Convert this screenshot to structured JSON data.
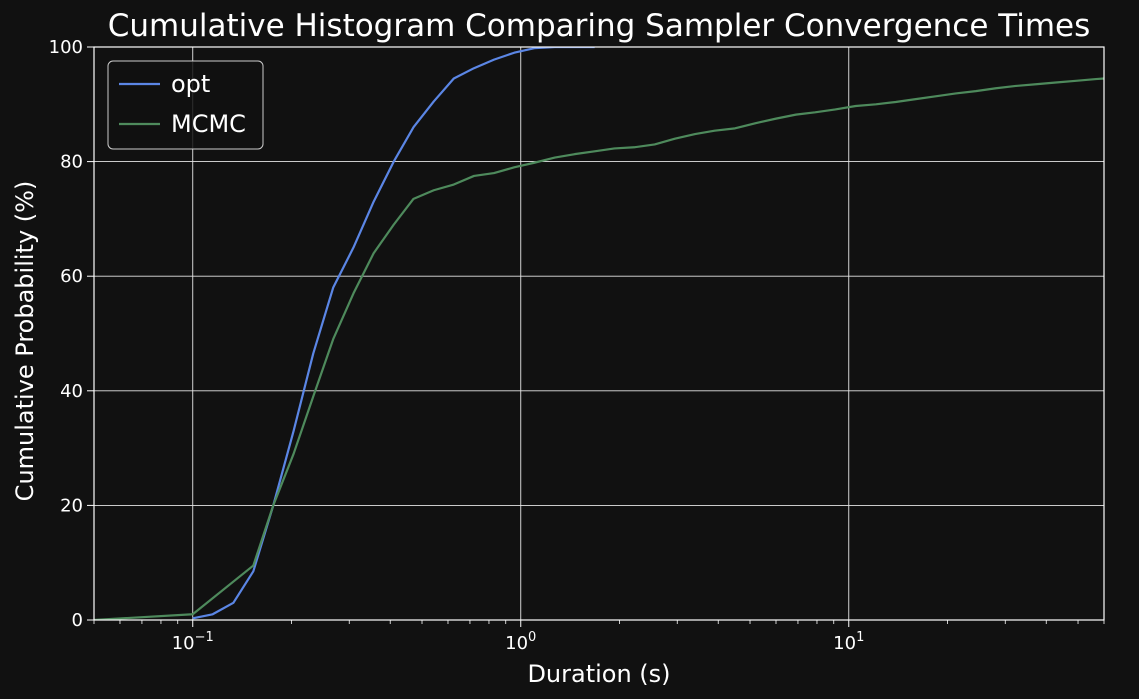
{
  "chart_data": {
    "type": "line",
    "title": "Cumulative Histogram Comparing Sampler Convergence Times",
    "xlabel": "Duration (s)",
    "ylabel": "Cumulative Probability (%)",
    "xscale": "log",
    "xlim": [
      0.05,
      60
    ],
    "ylim": [
      0,
      100
    ],
    "grid": true,
    "legend_position": "top-left",
    "background_color": "#111111",
    "x_ticks": [
      {
        "value": 0.1,
        "base": "10",
        "exp": "−1"
      },
      {
        "value": 1,
        "base": "10",
        "exp": "0"
      },
      {
        "value": 10,
        "base": "10",
        "exp": "1"
      }
    ],
    "y_ticks": [
      0,
      20,
      40,
      60,
      80,
      100
    ],
    "series": [
      {
        "name": "opt",
        "color": "#5b86e5",
        "x": [
          0.1,
          0.115,
          0.133,
          0.153,
          0.176,
          0.203,
          0.233,
          0.268,
          0.309,
          0.356,
          0.41,
          0.471,
          0.543,
          0.625,
          0.72,
          0.829,
          0.955,
          1.1,
          1.27,
          1.46,
          1.68
        ],
        "y": [
          0.3,
          1.0,
          3.0,
          8.5,
          20,
          33,
          46.5,
          58,
          65,
          73,
          80,
          86,
          90.5,
          94.5,
          96.3,
          97.8,
          99,
          99.8,
          100,
          100,
          100
        ]
      },
      {
        "name": "MCMC",
        "color": "#4e8a5c",
        "x": [
          0.05,
          0.1,
          0.153,
          0.176,
          0.203,
          0.233,
          0.268,
          0.309,
          0.356,
          0.41,
          0.471,
          0.543,
          0.625,
          0.72,
          0.829,
          0.955,
          1.1,
          1.27,
          1.46,
          1.68,
          1.93,
          2.22,
          2.56,
          2.95,
          3.4,
          3.9,
          4.5,
          5.2,
          6.0,
          6.9,
          7.9,
          9.1,
          10.5,
          12.1,
          13.9,
          16.0,
          18.4,
          21.2,
          24.4,
          28.1,
          32.3,
          37.2,
          42.8,
          49.3,
          56.7,
          60
        ],
        "y": [
          0,
          1.0,
          9.5,
          20,
          29,
          39,
          49,
          57,
          64,
          69,
          73.5,
          75,
          76,
          77.5,
          78,
          79,
          79.8,
          80.7,
          81.3,
          81.8,
          82.3,
          82.5,
          83,
          84,
          84.8,
          85.4,
          85.8,
          86.7,
          87.5,
          88.2,
          88.6,
          89.1,
          89.7,
          90,
          90.4,
          90.9,
          91.4,
          91.9,
          92.3,
          92.8,
          93.2,
          93.5,
          93.8,
          94.1,
          94.4,
          94.5
        ]
      }
    ]
  }
}
